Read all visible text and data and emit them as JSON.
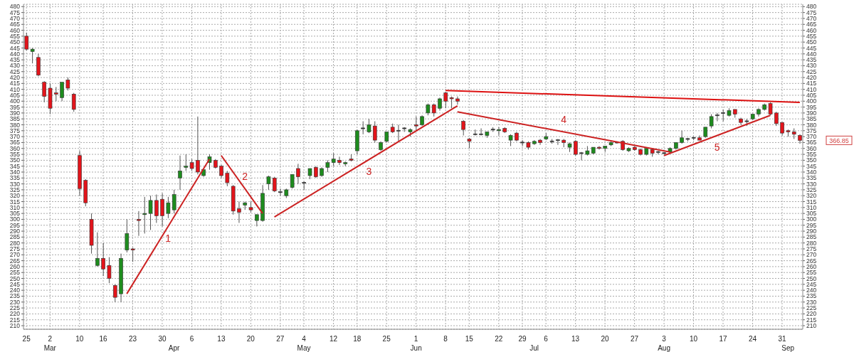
{
  "chart_data": {
    "type": "candlestick",
    "categories": [
      "25",
      null,
      null,
      null,
      "2\nMar",
      null,
      null,
      null,
      null,
      "10",
      null,
      null,
      null,
      "16",
      null,
      null,
      null,
      null,
      "23",
      null,
      null,
      null,
      null,
      "30",
      null,
      "\nApr",
      null,
      null,
      "6",
      null,
      null,
      null,
      null,
      "13",
      null,
      null,
      null,
      null,
      "20",
      null,
      null,
      null,
      null,
      "27",
      null,
      null,
      null,
      "4\nMay",
      null,
      null,
      null,
      null,
      "12",
      null,
      null,
      null,
      "18",
      null,
      null,
      null,
      null,
      "25",
      null,
      null,
      null,
      null,
      "1\nJun",
      null,
      null,
      null,
      null,
      "8",
      null,
      null,
      null,
      "15",
      null,
      null,
      null,
      null,
      "22",
      null,
      null,
      null,
      "29",
      null,
      "\nJul",
      null,
      "6",
      null,
      null,
      null,
      null,
      "13",
      null,
      null,
      null,
      null,
      "20",
      null,
      null,
      null,
      null,
      "27",
      null,
      null,
      null,
      null,
      "3\nAug",
      null,
      null,
      null,
      null,
      "10",
      null,
      null,
      null,
      null,
      "17",
      null,
      null,
      null,
      null,
      "24",
      null,
      null,
      null,
      null,
      "31",
      "\nSep",
      null,
      null
    ],
    "series": [
      {
        "ohlc": [
          [
            455,
            458,
            443,
            444
          ],
          [
            442,
            445,
            432,
            444
          ],
          [
            437,
            440,
            421,
            422
          ],
          [
            416,
            417,
            399,
            404
          ],
          [
            411,
            415,
            389,
            394
          ],
          [
            407,
            412,
            400,
            406
          ],
          [
            403,
            416,
            400,
            416
          ],
          [
            418,
            420,
            409,
            411
          ],
          [
            406,
            407,
            391,
            393
          ],
          [
            354,
            358,
            320,
            326
          ],
          [
            333,
            334,
            311,
            314
          ],
          [
            300,
            305,
            271,
            278
          ],
          [
            261,
            289,
            260,
            267
          ],
          [
            267,
            280,
            252,
            258
          ],
          [
            261,
            268,
            246,
            250
          ],
          [
            244,
            245,
            230,
            234
          ],
          [
            237,
            271,
            230,
            267
          ],
          [
            274,
            300,
            272,
            288
          ],
          [
            275,
            276,
            264,
            274
          ],
          [
            300,
            307,
            286,
            299
          ],
          [
            304,
            319,
            288,
            305
          ],
          [
            305,
            320,
            291,
            316
          ],
          [
            316,
            321,
            297,
            303
          ],
          [
            317,
            322,
            294,
            303
          ],
          [
            305,
            319,
            301,
            314
          ],
          [
            308,
            325,
            305,
            321
          ],
          [
            335,
            354,
            325,
            341
          ],
          [
            344,
            355,
            341,
            345
          ],
          [
            348,
            351,
            341,
            343
          ],
          [
            350,
            387,
            338,
            340
          ],
          [
            337,
            342,
            336,
            342
          ],
          [
            348,
            355,
            342,
            353
          ],
          [
            350,
            351,
            343,
            344
          ],
          [
            345,
            346,
            335,
            337
          ],
          [
            339,
            341,
            328,
            331
          ],
          [
            328,
            329,
            304,
            307
          ],
          [
            309,
            315,
            297,
            306
          ],
          [
            312,
            315,
            308,
            314
          ],
          [
            310,
            315,
            306,
            308
          ],
          [
            299,
            304,
            294,
            304
          ],
          [
            299,
            329,
            298,
            322
          ],
          [
            330,
            337,
            325,
            336
          ],
          [
            335,
            336,
            323,
            324
          ],
          [
            323,
            326,
            320,
            323
          ],
          [
            320,
            326,
            318,
            325
          ],
          [
            327,
            338,
            326,
            338
          ],
          [
            343,
            347,
            330,
            336
          ],
          [
            331,
            332,
            325,
            331
          ],
          [
            337,
            343,
            334,
            343
          ],
          [
            344,
            345,
            335,
            336
          ],
          [
            337,
            344,
            336,
            343
          ],
          [
            344,
            350,
            340,
            348
          ],
          [
            348,
            356,
            345,
            351
          ],
          [
            350,
            353,
            346,
            348
          ],
          [
            347,
            349,
            345,
            348
          ],
          [
            351,
            355,
            349,
            350
          ],
          [
            358,
            376,
            355,
            375
          ],
          [
            377,
            383,
            372,
            377
          ],
          [
            374,
            385,
            373,
            380
          ],
          [
            379,
            383,
            365,
            367
          ],
          [
            359,
            366,
            358,
            365
          ],
          [
            366,
            374,
            365,
            374
          ],
          [
            378,
            381,
            373,
            374
          ],
          [
            375,
            380,
            366,
            375
          ],
          [
            377,
            378,
            374,
            377
          ],
          [
            374,
            377,
            370,
            376
          ],
          [
            380,
            387,
            375,
            379
          ],
          [
            380,
            388,
            379,
            387
          ],
          [
            390,
            398,
            388,
            397
          ],
          [
            397,
            398,
            387,
            390
          ],
          [
            394,
            403,
            392,
            402
          ],
          [
            407,
            408,
            394,
            400
          ],
          [
            403,
            404,
            394,
            402
          ],
          [
            402,
            404,
            397,
            400
          ],
          [
            383,
            384,
            371,
            376
          ],
          [
            368,
            369,
            360,
            366
          ],
          [
            372,
            376,
            371,
            372
          ],
          [
            372,
            377,
            371,
            372
          ],
          [
            371,
            374,
            369,
            374
          ],
          [
            376,
            378,
            374,
            376
          ],
          [
            375,
            378,
            371,
            376
          ],
          [
            377,
            378,
            373,
            374
          ],
          [
            367,
            372,
            362,
            371
          ],
          [
            373,
            374,
            366,
            367
          ],
          [
            365,
            367,
            362,
            365
          ],
          [
            365,
            366,
            359,
            361
          ],
          [
            364,
            367,
            363,
            366
          ],
          [
            367,
            368,
            363,
            365
          ],
          [
            368,
            373,
            367,
            370
          ],
          [
            366,
            368,
            364,
            366
          ],
          [
            367,
            368,
            363,
            367
          ],
          [
            367,
            368,
            361,
            365
          ],
          [
            361,
            365,
            357,
            364
          ],
          [
            366,
            367,
            354,
            355
          ],
          [
            356,
            357,
            350,
            356
          ],
          [
            355,
            362,
            354,
            358
          ],
          [
            356,
            361,
            355,
            361
          ],
          [
            361,
            362,
            359,
            360
          ],
          [
            360,
            362,
            357,
            362
          ],
          [
            363,
            367,
            362,
            365
          ],
          [
            365,
            366,
            364,
            365
          ],
          [
            366,
            367,
            358,
            359
          ],
          [
            358,
            361,
            357,
            360
          ],
          [
            361,
            362,
            358,
            359
          ],
          [
            359,
            360,
            354,
            355
          ],
          [
            355,
            361,
            354,
            360
          ],
          [
            359,
            360,
            353,
            356
          ],
          [
            357,
            358,
            355,
            357
          ],
          [
            356,
            357,
            355,
            356
          ],
          [
            357,
            361,
            356,
            360
          ],
          [
            360,
            365,
            359,
            365
          ],
          [
            365,
            375,
            364,
            369
          ],
          [
            368,
            369,
            366,
            368
          ],
          [
            369,
            370,
            367,
            369
          ],
          [
            369,
            371,
            367,
            367
          ],
          [
            370,
            378,
            369,
            378
          ],
          [
            379,
            389,
            377,
            387
          ],
          [
            388,
            390,
            383,
            388
          ],
          [
            390,
            393,
            383,
            390
          ],
          [
            388,
            394,
            387,
            392
          ],
          [
            393,
            393,
            386,
            389
          ],
          [
            385,
            386,
            380,
            382
          ],
          [
            383,
            385,
            379,
            383
          ],
          [
            385,
            389,
            384,
            389
          ],
          [
            389,
            394,
            387,
            393
          ],
          [
            393,
            398,
            392,
            397
          ],
          [
            398,
            399,
            388,
            389
          ],
          [
            390,
            391,
            379,
            381
          ],
          [
            382,
            382,
            371,
            373
          ],
          [
            375,
            376,
            370,
            374
          ],
          [
            374,
            377,
            368,
            372
          ],
          [
            371,
            372,
            364,
            366.85
          ]
        ],
        "colors": [
          "#e3141b",
          "#1e8c1e",
          "#e3141b",
          "#e3141b",
          "#e3141b",
          "#e3141b",
          "#1e8c1e",
          "#e3141b",
          "#e3141b",
          "#e3141b",
          "#e3141b",
          "#e3141b",
          "#1e8c1e",
          "#e3141b",
          "#e3141b",
          "#e3141b",
          "#1e8c1e",
          "#1e8c1e",
          "#e3141b",
          "#e3141b",
          "#1e8c1e",
          "#1e8c1e",
          "#e3141b",
          "#e3141b",
          "#1e8c1e",
          "#1e8c1e",
          "#1e8c1e",
          "#1e8c1e",
          "#e3141b",
          "#e3141b",
          "#1e8c1e",
          "#1e8c1e",
          "#e3141b",
          "#e3141b",
          "#e3141b",
          "#e3141b",
          "#e3141b",
          "#1e8c1e",
          "#e3141b",
          "#1e8c1e",
          "#1e8c1e",
          "#1e8c1e",
          "#e3141b",
          "#3a3a3a",
          "#1e8c1e",
          "#1e8c1e",
          "#e3141b",
          "#3a3a3a",
          "#1e8c1e",
          "#e3141b",
          "#1e8c1e",
          "#1e8c1e",
          "#1e8c1e",
          "#e3141b",
          "#1e8c1e",
          "#e3141b",
          "#1e8c1e",
          "#3a3a3a",
          "#1e8c1e",
          "#e3141b",
          "#1e8c1e",
          "#1e8c1e",
          "#e3141b",
          "#3a3a3a",
          "#3a3a3a",
          "#1e8c1e",
          "#e3141b",
          "#1e8c1e",
          "#1e8c1e",
          "#e3141b",
          "#1e8c1e",
          "#e3141b",
          "#e3141b",
          "#e3141b",
          "#e3141b",
          "#e3141b",
          "#3a3a3a",
          "#3a3a3a",
          "#1e8c1e",
          "#3a3a3a",
          "#1e8c1e",
          "#e3141b",
          "#1e8c1e",
          "#e3141b",
          "#3a3a3a",
          "#e3141b",
          "#1e8c1e",
          "#e3141b",
          "#1e8c1e",
          "#3a3a3a",
          "#3a3a3a",
          "#e3141b",
          "#1e8c1e",
          "#e3141b",
          "#3a3a3a",
          "#1e8c1e",
          "#1e8c1e",
          "#e3141b",
          "#1e8c1e",
          "#1e8c1e",
          "#3a3a3a",
          "#e3141b",
          "#1e8c1e",
          "#e3141b",
          "#e3141b",
          "#1e8c1e",
          "#e3141b",
          "#3a3a3a",
          "#3a3a3a",
          "#1e8c1e",
          "#1e8c1e",
          "#1e8c1e",
          "#3a3a3a",
          "#3a3a3a",
          "#e3141b",
          "#1e8c1e",
          "#1e8c1e",
          "#3a3a3a",
          "#3a3a3a",
          "#1e8c1e",
          "#e3141b",
          "#e3141b",
          "#3a3a3a",
          "#1e8c1e",
          "#1e8c1e",
          "#1e8c1e",
          "#e3141b",
          "#e3141b",
          "#e3141b",
          "#e3141b",
          "#e3141b",
          "#e3141b"
        ]
      },
      {
        "type": "line",
        "name": "1",
        "color": "#cc2222",
        "values": [
          null,
          null,
          null,
          null,
          null,
          null,
          null,
          null,
          null,
          null,
          null,
          null,
          null,
          null,
          null,
          null,
          null,
          237,
          null,
          null,
          null,
          null,
          null,
          null,
          null,
          null,
          null,
          null,
          null,
          null,
          null,
          351,
          null,
          null,
          null,
          null,
          null,
          null,
          null,
          null,
          null,
          null,
          null,
          null,
          null,
          null,
          null,
          null,
          null,
          null,
          null,
          null,
          null,
          null,
          null,
          null,
          null,
          null,
          null,
          null,
          null,
          null,
          null,
          null,
          null,
          null,
          null,
          null,
          null,
          null,
          null,
          null,
          null,
          null,
          null,
          null,
          null,
          null,
          null,
          null,
          null,
          null,
          null,
          null,
          null,
          null,
          null,
          null,
          null,
          null,
          null,
          null,
          null,
          null,
          null,
          null,
          null,
          null,
          null,
          null,
          null,
          null,
          null,
          null,
          null,
          null,
          null,
          null,
          null,
          null,
          null,
          null,
          null,
          null,
          null,
          null,
          null,
          null,
          null,
          null,
          null,
          null,
          null,
          null,
          null,
          null,
          null,
          null,
          null,
          null,
          null,
          null
        ]
      },
      {
        "type": "line",
        "name": "2",
        "color": "#cc2222",
        "values": [
          null,
          null,
          null,
          null,
          null,
          null,
          null,
          null,
          null,
          null,
          null,
          null,
          null,
          null,
          null,
          null,
          null,
          null,
          null,
          null,
          null,
          null,
          null,
          null,
          null,
          null,
          null,
          null,
          null,
          null,
          null,
          null,
          null,
          354,
          null,
          null,
          null,
          null,
          null,
          null,
          305,
          null,
          null,
          null,
          null,
          null,
          null,
          null,
          null,
          null,
          null,
          null,
          null,
          null,
          null,
          null,
          null,
          null,
          null,
          null,
          null,
          null,
          null,
          null,
          null,
          null,
          null,
          null,
          null,
          null,
          null,
          null,
          null,
          null,
          null,
          null,
          null,
          null,
          null,
          null,
          null,
          null,
          null,
          null,
          null,
          null,
          null,
          null,
          null,
          null,
          null,
          null,
          null,
          null,
          null,
          null,
          null,
          null,
          null,
          null,
          null,
          null,
          null,
          null,
          null,
          null,
          null,
          null,
          null,
          null,
          null,
          null,
          null,
          null,
          null,
          null,
          null,
          null,
          null,
          null,
          null,
          null,
          null,
          null,
          null,
          null,
          null,
          null,
          null,
          null,
          null,
          null
        ]
      },
      {
        "type": "line",
        "name": "3",
        "color": "#cc2222",
        "values": [
          null,
          null,
          null,
          null,
          null,
          null,
          null,
          null,
          null,
          null,
          null,
          null,
          null,
          null,
          null,
          null,
          null,
          null,
          null,
          null,
          null,
          null,
          null,
          null,
          null,
          null,
          null,
          null,
          null,
          null,
          null,
          null,
          null,
          null,
          null,
          null,
          null,
          null,
          null,
          null,
          null,
          null,
          302,
          null,
          null,
          null,
          null,
          null,
          null,
          null,
          null,
          null,
          null,
          null,
          null,
          null,
          null,
          null,
          null,
          null,
          null,
          null,
          null,
          null,
          null,
          null,
          null,
          null,
          null,
          null,
          null,
          null,
          null,
          396,
          null,
          null,
          null,
          null,
          null,
          null,
          null,
          null,
          null,
          null,
          null,
          null,
          null,
          null,
          null,
          null,
          null,
          null,
          null,
          null,
          null,
          null,
          null,
          null,
          null,
          null,
          null,
          null,
          null,
          null,
          null,
          null,
          null,
          null,
          null,
          null,
          null,
          null,
          null,
          null,
          null,
          null,
          null,
          null,
          null,
          null,
          null,
          null,
          null,
          null,
          null,
          null,
          null,
          null,
          null,
          null,
          null,
          null
        ]
      },
      {
        "type": "line",
        "name": "4",
        "color": "#cc2222",
        "values": [
          null,
          null,
          null,
          null,
          null,
          null,
          null,
          null,
          null,
          null,
          null,
          null,
          null,
          null,
          null,
          null,
          null,
          null,
          null,
          null,
          null,
          null,
          null,
          null,
          null,
          null,
          null,
          null,
          null,
          null,
          null,
          null,
          null,
          null,
          null,
          null,
          null,
          null,
          null,
          null,
          null,
          null,
          null,
          null,
          null,
          null,
          null,
          null,
          null,
          null,
          null,
          null,
          null,
          null,
          null,
          null,
          null,
          null,
          null,
          null,
          null,
          null,
          null,
          null,
          null,
          null,
          null,
          null,
          null,
          null,
          null,
          null,
          null,
          391,
          null,
          null,
          null,
          null,
          null,
          null,
          null,
          null,
          null,
          null,
          null,
          null,
          null,
          null,
          null,
          null,
          null,
          null,
          null,
          null,
          null,
          null,
          null,
          null,
          null,
          null,
          null,
          null,
          null,
          null,
          null,
          null,
          null,
          null,
          null,
          357,
          null,
          null,
          null,
          null,
          null,
          null,
          null,
          null,
          null,
          null,
          null,
          null,
          null,
          null,
          null,
          null,
          null,
          null,
          null,
          null,
          null,
          null
        ]
      },
      {
        "type": "line",
        "name": "5",
        "color": "#cc2222",
        "values": [
          null,
          null,
          null,
          null,
          null,
          null,
          null,
          null,
          null,
          null,
          null,
          null,
          null,
          null,
          null,
          null,
          null,
          null,
          null,
          null,
          null,
          null,
          null,
          null,
          null,
          null,
          null,
          null,
          null,
          null,
          null,
          null,
          null,
          null,
          null,
          null,
          null,
          null,
          null,
          null,
          null,
          null,
          null,
          null,
          null,
          null,
          null,
          null,
          null,
          null,
          null,
          null,
          null,
          null,
          null,
          null,
          null,
          null,
          null,
          null,
          null,
          null,
          null,
          null,
          null,
          null,
          null,
          null,
          null,
          null,
          null,
          null,
          null,
          null,
          null,
          null,
          null,
          null,
          null,
          null,
          null,
          null,
          null,
          null,
          null,
          null,
          null,
          null,
          null,
          null,
          null,
          null,
          null,
          null,
          null,
          null,
          null,
          null,
          null,
          null,
          null,
          null,
          null,
          null,
          null,
          null,
          null,
          null,
          354,
          null,
          null,
          null,
          null,
          null,
          null,
          null,
          null,
          null,
          null,
          null,
          null,
          null,
          null,
          null,
          null,
          null,
          388,
          null,
          null,
          null,
          null,
          null
        ]
      },
      {
        "type": "line",
        "color": "#dd1111",
        "values": [
          null,
          null,
          null,
          null,
          null,
          null,
          null,
          null,
          null,
          null,
          null,
          null,
          null,
          null,
          null,
          null,
          null,
          null,
          null,
          null,
          null,
          null,
          null,
          null,
          null,
          null,
          null,
          null,
          null,
          null,
          null,
          null,
          null,
          null,
          null,
          null,
          null,
          null,
          null,
          null,
          null,
          null,
          null,
          null,
          null,
          null,
          null,
          null,
          null,
          null,
          null,
          null,
          null,
          null,
          null,
          null,
          null,
          null,
          null,
          null,
          null,
          null,
          null,
          null,
          null,
          null,
          null,
          null,
          null,
          null,
          null,
          409,
          null,
          null,
          null,
          null,
          null,
          null,
          null,
          null,
          null,
          null,
          null,
          null,
          null,
          null,
          null,
          null,
          null,
          null,
          null,
          null,
          null,
          null,
          null,
          null,
          null,
          null,
          null,
          null,
          null,
          null,
          null,
          null,
          null,
          null,
          null,
          null,
          null,
          null,
          null,
          null,
          null,
          null,
          null,
          null,
          null,
          null,
          null,
          null,
          null,
          null,
          null,
          null,
          null,
          null,
          null,
          null,
          null,
          null,
          null,
          399
        ]
      }
    ],
    "annotations": [
      "366.85"
    ],
    "ylim": [
      207,
      482
    ],
    "yticks": [
      210,
      215,
      220,
      225,
      230,
      235,
      240,
      245,
      250,
      255,
      260,
      265,
      270,
      275,
      280,
      285,
      290,
      295,
      300,
      305,
      310,
      315,
      320,
      325,
      330,
      335,
      340,
      345,
      350,
      355,
      360,
      365,
      370,
      375,
      380,
      385,
      390,
      395,
      400,
      405,
      410,
      415,
      420,
      425,
      430,
      435,
      440,
      445,
      450,
      455,
      460,
      465,
      470,
      475,
      480
    ],
    "y2lim": [
      207,
      482
    ],
    "y2ticks": [
      210,
      215,
      220,
      225,
      230,
      235,
      240,
      245,
      250,
      255,
      260,
      265,
      270,
      275,
      280,
      285,
      290,
      295,
      300,
      305,
      310,
      315,
      320,
      325,
      330,
      335,
      340,
      345,
      350,
      355,
      360,
      365,
      370,
      375,
      380,
      385,
      390,
      395,
      400,
      405,
      410,
      415,
      420,
      425,
      430,
      435,
      440,
      445,
      450,
      455,
      460,
      465,
      470,
      475,
      480
    ],
    "grid": true
  }
}
